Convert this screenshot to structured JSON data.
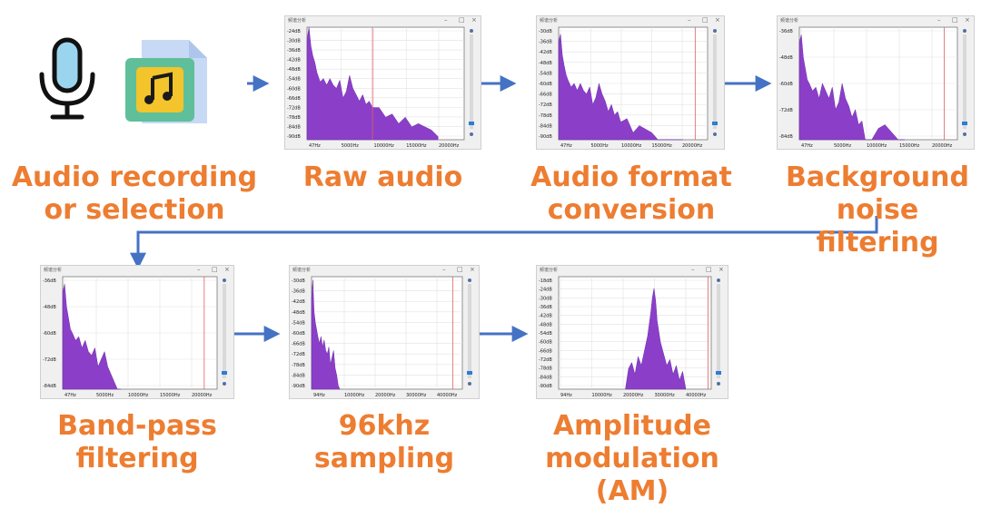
{
  "labels": {
    "recording": "Audio recording\nor selection",
    "raw": "Raw audio",
    "format": "Audio format\nconversion",
    "noise": "Background noise\nfiltering",
    "bandpass": "Band-pass\nfiltering",
    "sampling": "96khz\nsampling",
    "am": "Amplitude\nmodulation (AM)"
  },
  "colors": {
    "label": "#ED7D31",
    "arrow": "#4472C4",
    "spectrum": "#8B3FC9",
    "cursor": "#E06060"
  },
  "icons": [
    "microphone-icon",
    "audio-file-icon"
  ],
  "chart_data": [
    {
      "type": "area",
      "id": "raw",
      "window_title": "频谱分析",
      "ylabels": [
        "-24dB",
        "-30dB",
        "-36dB",
        "-42dB",
        "-48dB",
        "-54dB",
        "-60dB",
        "-66dB",
        "-72dB",
        "-78dB",
        "-84dB",
        "-90dB"
      ],
      "xlabels": [
        "47Hz",
        "5000Hz",
        "10000Hz",
        "15000Hz",
        "20000Hz"
      ],
      "xlim": [
        0,
        24000
      ],
      "ylim": [
        -92,
        -22
      ],
      "cursor": 10000,
      "x": [
        0,
        300,
        600,
        900,
        1200,
        1500,
        2000,
        2500,
        3000,
        3500,
        4000,
        4500,
        5000,
        5500,
        6000,
        6500,
        7000,
        7500,
        8000,
        8500,
        9000,
        9500,
        10000,
        11000,
        12000,
        13000,
        14000,
        15000,
        16000,
        17000,
        18000,
        19000,
        20000
      ],
      "y": [
        -30,
        -22,
        -34,
        -40,
        -44,
        -50,
        -56,
        -54,
        -58,
        -54,
        -58,
        -60,
        -55,
        -66,
        -62,
        -52,
        -60,
        -64,
        -68,
        -64,
        -70,
        -68,
        -72,
        -72,
        -78,
        -76,
        -82,
        -78,
        -84,
        -82,
        -84,
        -86,
        -90
      ]
    },
    {
      "type": "area",
      "id": "format",
      "window_title": "频谱分析",
      "ylabels": [
        "-30dB",
        "-36dB",
        "-42dB",
        "-48dB",
        "-54dB",
        "-60dB",
        "-66dB",
        "-72dB",
        "-78dB",
        "-84dB",
        "-90dB"
      ],
      "xlabels": [
        "47Hz",
        "5000Hz",
        "10000Hz",
        "15000Hz",
        "20000Hz"
      ],
      "xlim": [
        0,
        24000
      ],
      "ylim": [
        -92,
        -28
      ],
      "cursor": 22000,
      "x": [
        0,
        300,
        600,
        900,
        1200,
        1500,
        2000,
        2500,
        3000,
        3500,
        4000,
        4500,
        5000,
        5500,
        6000,
        6500,
        7000,
        7500,
        8000,
        8500,
        9000,
        9500,
        10000,
        11000,
        12000,
        13000,
        14000,
        15000,
        16000,
        17000,
        18000,
        19000,
        20000
      ],
      "y": [
        -36,
        -32,
        -44,
        -50,
        -55,
        -58,
        -62,
        -60,
        -64,
        -60,
        -64,
        -66,
        -62,
        -72,
        -68,
        -60,
        -66,
        -70,
        -76,
        -72,
        -78,
        -76,
        -82,
        -80,
        -88,
        -84,
        -86,
        -88,
        -92,
        -92,
        -92,
        -92,
        -92
      ]
    },
    {
      "type": "area",
      "id": "noise",
      "window_title": "频谱分析",
      "ylabels": [
        "-36dB",
        "-48dB",
        "-60dB",
        "-72dB",
        "-84dB"
      ],
      "xlabels": [
        "47Hz",
        "5000Hz",
        "10000Hz",
        "15000Hz",
        "20000Hz"
      ],
      "xlim": [
        0,
        24000
      ],
      "ylim": [
        -92,
        -32
      ],
      "cursor": 22000,
      "x": [
        0,
        300,
        600,
        900,
        1200,
        1500,
        2000,
        2500,
        3000,
        3500,
        4000,
        4500,
        5000,
        5500,
        6000,
        6500,
        7000,
        7500,
        8000,
        8500,
        9000,
        9500,
        10000,
        11000,
        12000,
        13000,
        14000,
        15000,
        16000
      ],
      "y": [
        -40,
        -36,
        -48,
        -54,
        -60,
        -62,
        -66,
        -64,
        -70,
        -62,
        -66,
        -70,
        -64,
        -76,
        -72,
        -62,
        -70,
        -74,
        -80,
        -76,
        -84,
        -82,
        -92,
        -92,
        -86,
        -84,
        -88,
        -92,
        -92
      ]
    },
    {
      "type": "area",
      "id": "bandpass",
      "window_title": "频谱分析",
      "ylabels": [
        "-36dB",
        "-48dB",
        "-60dB",
        "-72dB",
        "-84dB"
      ],
      "xlabels": [
        "47Hz",
        "5000Hz",
        "10000Hz",
        "15000Hz",
        "20000Hz"
      ],
      "xlim": [
        0,
        24000
      ],
      "ylim": [
        -92,
        -32
      ],
      "cursor": 22000,
      "x": [
        0,
        300,
        600,
        900,
        1200,
        1500,
        2000,
        2500,
        3000,
        3500,
        4000,
        4500,
        5000,
        5500,
        6000,
        6500,
        7000,
        7500,
        8000,
        8500,
        9000
      ],
      "y": [
        -40,
        -36,
        -48,
        -54,
        -60,
        -62,
        -66,
        -64,
        -70,
        -66,
        -72,
        -74,
        -70,
        -80,
        -76,
        -72,
        -80,
        -84,
        -88,
        -92,
        -92
      ]
    },
    {
      "type": "area",
      "id": "sampling",
      "window_title": "频谱分析",
      "ylabels": [
        "-30dB",
        "-36dB",
        "-42dB",
        "-48dB",
        "-54dB",
        "-60dB",
        "-66dB",
        "-72dB",
        "-78dB",
        "-84dB",
        "-90dB"
      ],
      "xlabels": [
        "94Hz",
        "10000Hz",
        "20000Hz",
        "30000Hz",
        "40000Hz"
      ],
      "xlim": [
        0,
        48000
      ],
      "ylim": [
        -92,
        -28
      ],
      "cursor": 45000,
      "x": [
        0,
        400,
        800,
        1200,
        1600,
        2000,
        2500,
        3000,
        3500,
        4000,
        4500,
        5000,
        5500,
        6000,
        6500,
        7000,
        7500,
        8000,
        8500,
        9000
      ],
      "y": [
        -40,
        -30,
        -48,
        -54,
        -58,
        -62,
        -66,
        -62,
        -68,
        -64,
        -70,
        -72,
        -68,
        -78,
        -74,
        -70,
        -80,
        -84,
        -90,
        -92
      ]
    },
    {
      "type": "area",
      "id": "am",
      "window_title": "频谱分析",
      "ylabels": [
        "-18dB",
        "-24dB",
        "-30dB",
        "-36dB",
        "-42dB",
        "-48dB",
        "-54dB",
        "-60dB",
        "-66dB",
        "-72dB",
        "-78dB",
        "-84dB",
        "-90dB"
      ],
      "xlabels": [
        "94Hz",
        "10000Hz",
        "20000Hz",
        "30000Hz",
        "40000Hz"
      ],
      "xlim": [
        0,
        48000
      ],
      "ylim": [
        -92,
        -16
      ],
      "cursor": 47000,
      "x": [
        21000,
        22000,
        23000,
        24000,
        25000,
        26000,
        27000,
        28000,
        29000,
        29500,
        30000,
        30500,
        31000,
        32000,
        33000,
        34000,
        35000,
        36000,
        37000,
        38000,
        39000,
        40000
      ],
      "y": [
        -92,
        -78,
        -74,
        -82,
        -70,
        -76,
        -66,
        -56,
        -40,
        -30,
        -24,
        -32,
        -46,
        -60,
        -68,
        -76,
        -72,
        -82,
        -76,
        -86,
        -80,
        -92
      ]
    }
  ]
}
